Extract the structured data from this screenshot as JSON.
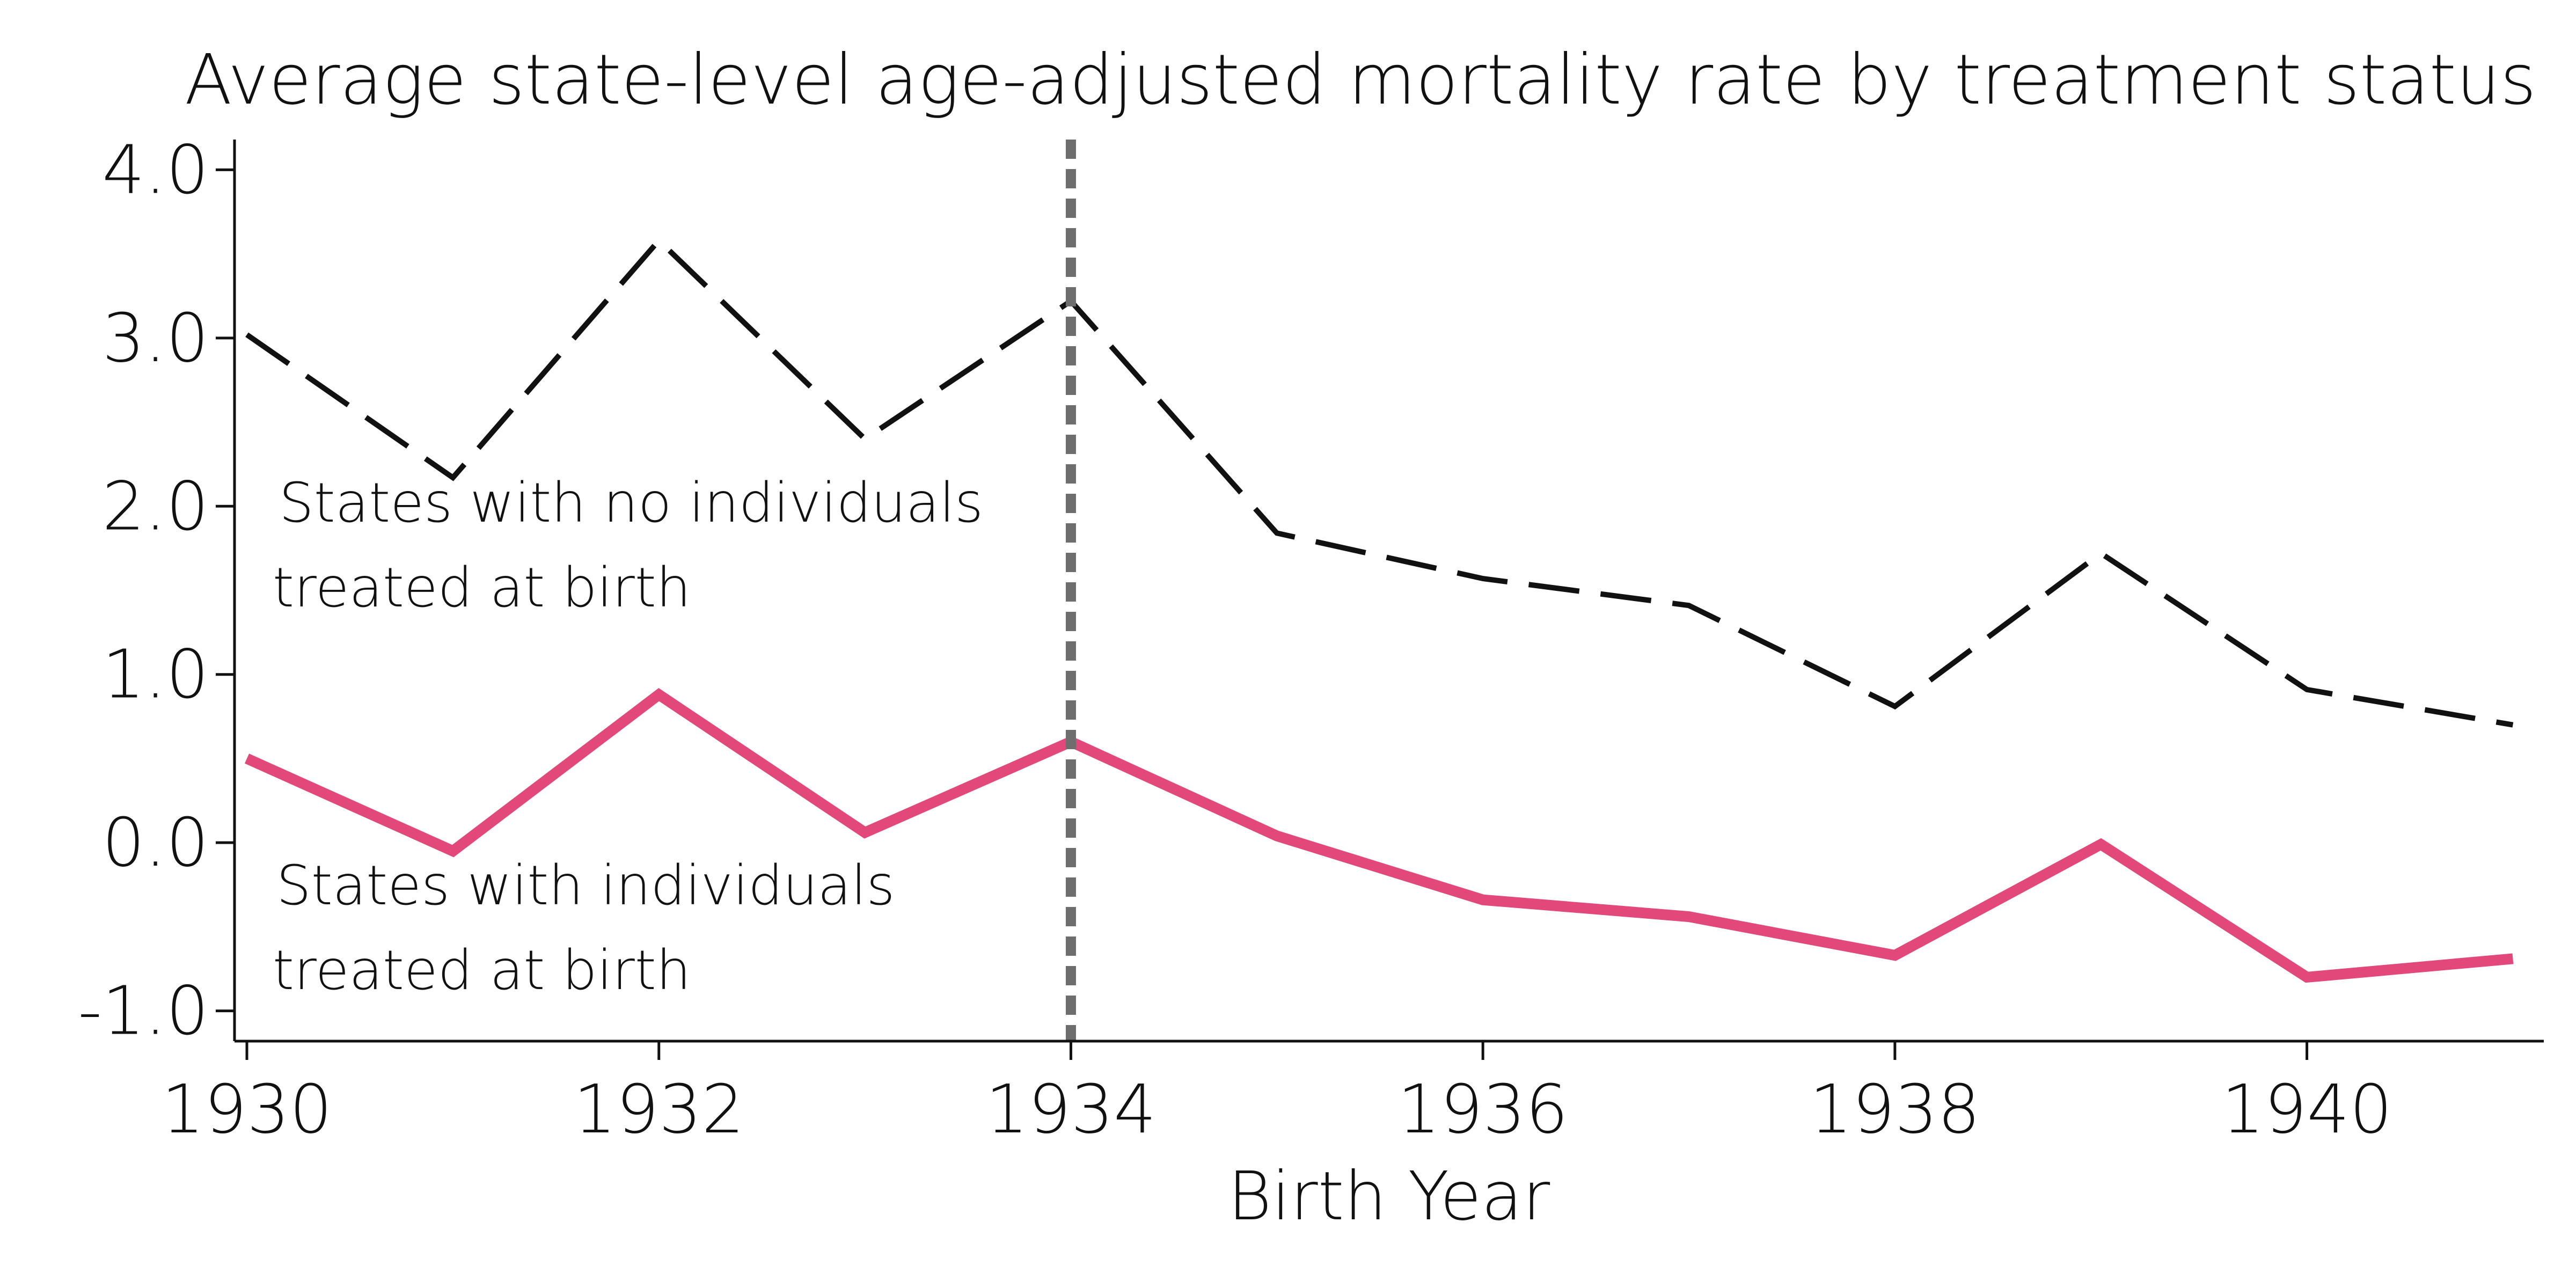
{
  "chart_data": {
    "type": "line",
    "title": "Average state-level age-adjusted mortality rate by treatment status",
    "xlabel": "Birth Year",
    "ylabel": "",
    "x": [
      1930,
      1931,
      1932,
      1933,
      1934,
      1935,
      1936,
      1937,
      1938,
      1939,
      1940,
      1941
    ],
    "xlim": [
      1929.94,
      1941.15
    ],
    "ylim": [
      -1.18,
      4.18
    ],
    "xticks": [
      1930,
      1932,
      1934,
      1936,
      1938,
      1940
    ],
    "xtick_labels": [
      "1930",
      "1932",
      "1934",
      "1936",
      "1938",
      "1940"
    ],
    "yticks": [
      -1.0,
      0.0,
      1.0,
      2.0,
      3.0,
      4.0
    ],
    "ytick_labels": [
      "-1.0",
      "0.0",
      "1.0",
      "2.0",
      "3.0",
      "4.0"
    ],
    "grid": false,
    "legend": "none",
    "series": [
      {
        "values": [
          3.02,
          2.17,
          3.58,
          2.4,
          3.22,
          1.84,
          1.57,
          1.41,
          0.81,
          1.72,
          0.91,
          0.7
        ],
        "color": "#111111",
        "style": "dashed"
      },
      {
        "values": [
          0.5,
          -0.05,
          0.88,
          0.06,
          0.6,
          0.04,
          -0.34,
          -0.44,
          -0.67,
          -0.01,
          -0.8,
          -0.69
        ],
        "color": "#e2497a",
        "style": "solid"
      }
    ],
    "reference_line": {
      "x": 1934,
      "color": "#6e6e6e",
      "style": "dotted"
    },
    "annotations": [
      {
        "line1": "States with no individuals",
        "line2": "treated at birth"
      },
      {
        "line1": "States with individuals",
        "line2": "treated at birth"
      }
    ]
  }
}
